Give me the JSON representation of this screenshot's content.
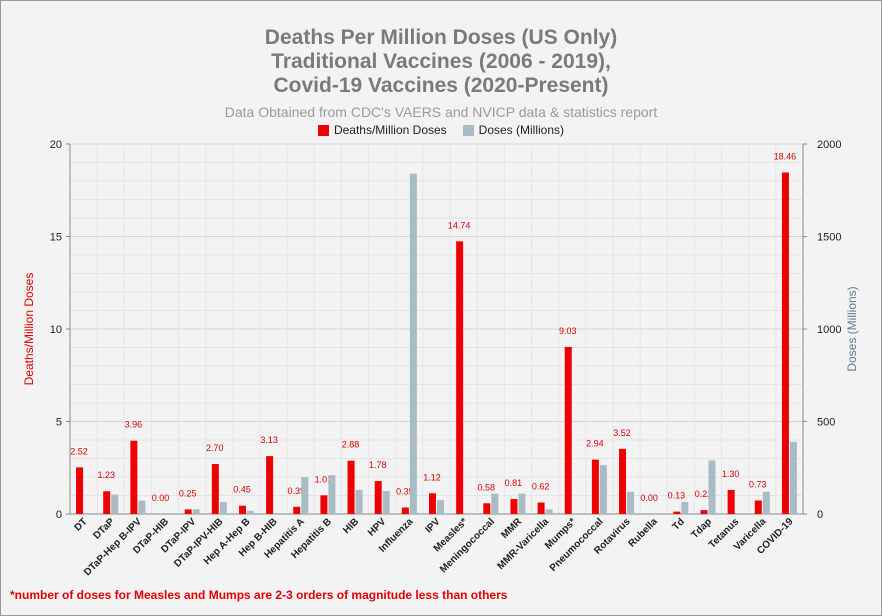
{
  "chart_data": {
    "type": "bar",
    "title_lines": [
      "Deaths Per Million Doses (US Only)",
      "Traditional Vaccines (2006 - 2019),",
      "Covid-19 Vaccines (2020-Present)"
    ],
    "subtitle": "Data Obtained from CDC's VAERS and NVICP data & statistics report",
    "ylabel_left": "Deaths/Million Doses",
    "ylabel_right": "Doses (Millions)",
    "ylim_left": [
      0,
      20
    ],
    "ylim_right": [
      0,
      2000
    ],
    "yticks_left": [
      "0",
      "5",
      "10",
      "15",
      "20"
    ],
    "yticks_right": [
      "0",
      "500",
      "1000",
      "1500",
      "2000"
    ],
    "legend_position": "top-center",
    "grid": true,
    "categories": [
      "DT",
      "DTaP",
      "DTaP-Hep B-IPV",
      "DTaP-HIB",
      "DTaP-IPV",
      "DTaP-IPV-HIB",
      "Hep A-Hep B",
      "Hep B-HIB",
      "Hepatitis A",
      "Hepatitis B",
      "HIB",
      "HPV",
      "Influenza",
      "IPV",
      "Measles*",
      "Meningococcal",
      "MMR",
      "MMR-Varicella",
      "Mumps*",
      "Pneumococcal",
      "Rotavirus",
      "Rubella",
      "Td",
      "Tdap",
      "Tetanus",
      "Varicella",
      "COVID-19"
    ],
    "series": [
      {
        "name": "Deaths/Million Doses",
        "axis": "left",
        "color": "#ee0000",
        "values": [
          2.52,
          1.23,
          3.96,
          0.0,
          0.25,
          2.7,
          0.45,
          3.13,
          0.39,
          1.01,
          2.88,
          1.78,
          0.35,
          1.12,
          14.74,
          0.58,
          0.81,
          0.62,
          9.03,
          2.94,
          3.52,
          0.0,
          0.13,
          0.21,
          1.3,
          0.73,
          18.46
        ],
        "labels": [
          "2.52",
          "1.23",
          "3.96",
          "0.00",
          "0.25",
          "2.70",
          "0.45",
          "3.13",
          "0.39",
          "1.01",
          "2.88",
          "1.78",
          "0.35",
          "1.12",
          "14.74",
          "0.58",
          "0.81",
          "0.62",
          "9.03",
          "2.94",
          "3.52",
          "0.00",
          "0.13",
          "0.21",
          "1.30",
          "0.73",
          "18.46"
        ]
      },
      {
        "name": "Doses (Millions)",
        "axis": "right",
        "color": "#a9bcc6",
        "values": [
          0,
          105,
          72,
          0,
          25,
          65,
          17,
          0,
          200,
          210,
          130,
          125,
          1840,
          75,
          0,
          110,
          110,
          25,
          0,
          265,
          120,
          0,
          65,
          290,
          0,
          120,
          390
        ]
      }
    ]
  },
  "footnote": "*number of doses for Measles and Mumps are 2-3 orders of magnitude less than others"
}
